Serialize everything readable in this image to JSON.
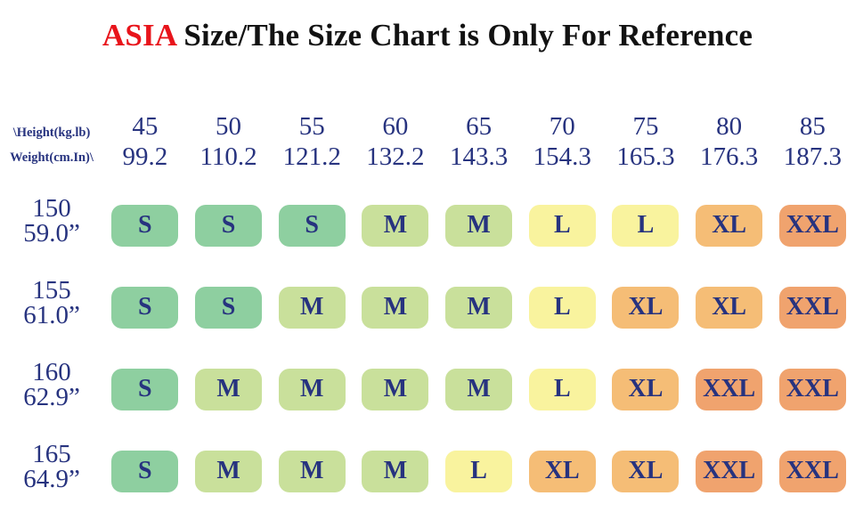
{
  "title": {
    "highlight": "ASIA",
    "rest": " Size/The Size Chart is Only For Reference"
  },
  "colors": {
    "S": "#8ecfa0",
    "M": "#c9e09b",
    "L": "#f9f39e",
    "XL": "#f5bd76",
    "XXL": "#f0a36e",
    "text_navy": "#27337f",
    "title_red": "#e8141b"
  },
  "table": {
    "corner": {
      "line1": "\\Height(kg.lb)",
      "line2": "Weight(cm.In)\\"
    },
    "columns": [
      {
        "kg": "45",
        "lb": "99.2"
      },
      {
        "kg": "50",
        "lb": "110.2"
      },
      {
        "kg": "55",
        "lb": "121.2"
      },
      {
        "kg": "60",
        "lb": "132.2"
      },
      {
        "kg": "65",
        "lb": "143.3"
      },
      {
        "kg": "70",
        "lb": "154.3"
      },
      {
        "kg": "75",
        "lb": "165.3"
      },
      {
        "kg": "80",
        "lb": "176.3"
      },
      {
        "kg": "85",
        "lb": "187.3"
      }
    ],
    "rows": [
      {
        "cm": "150",
        "inch": "59.0”",
        "sizes": [
          "S",
          "S",
          "S",
          "M",
          "M",
          "L",
          "L",
          "XL",
          "XXL"
        ]
      },
      {
        "cm": "155",
        "inch": "61.0”",
        "sizes": [
          "S",
          "S",
          "M",
          "M",
          "M",
          "L",
          "XL",
          "XL",
          "XXL"
        ]
      },
      {
        "cm": "160",
        "inch": "62.9”",
        "sizes": [
          "S",
          "M",
          "M",
          "M",
          "M",
          "L",
          "XL",
          "XXL",
          "XXL"
        ]
      },
      {
        "cm": "165",
        "inch": "64.9”",
        "sizes": [
          "S",
          "M",
          "M",
          "M",
          "L",
          "XL",
          "XL",
          "XXL",
          "XXL"
        ]
      }
    ]
  },
  "chart_data": {
    "type": "table",
    "title": "ASIA Size/The Size Chart is Only For Reference",
    "corner_labels": [
      "\\Height(kg.lb)",
      "Weight(cm.In)\\"
    ],
    "columns_weight_kg": [
      45,
      50,
      55,
      60,
      65,
      70,
      75,
      80,
      85
    ],
    "columns_weight_lb": [
      99.2,
      110.2,
      121.2,
      132.2,
      143.3,
      154.3,
      165.3,
      176.3,
      187.3
    ],
    "rows_height_cm": [
      150,
      155,
      160,
      165
    ],
    "rows_height_in": [
      "59.0”",
      "61.0”",
      "62.9”",
      "64.9”"
    ],
    "cell_values": [
      [
        "S",
        "S",
        "S",
        "M",
        "M",
        "L",
        "L",
        "XL",
        "XXL"
      ],
      [
        "S",
        "S",
        "M",
        "M",
        "M",
        "L",
        "XL",
        "XL",
        "XXL"
      ],
      [
        "S",
        "M",
        "M",
        "M",
        "M",
        "L",
        "XL",
        "XXL",
        "XXL"
      ],
      [
        "S",
        "M",
        "M",
        "M",
        "L",
        "XL",
        "XL",
        "XXL",
        "XXL"
      ]
    ],
    "cell_colors_by_size": {
      "S": "#8ecfa0",
      "M": "#c9e09b",
      "L": "#f9f39e",
      "XL": "#f5bd76",
      "XXL": "#f0a36e"
    },
    "layout_hints": {
      "text_color": "#27337f",
      "background": "#ffffff",
      "last_row_clipped_at_bottom": true
    }
  }
}
